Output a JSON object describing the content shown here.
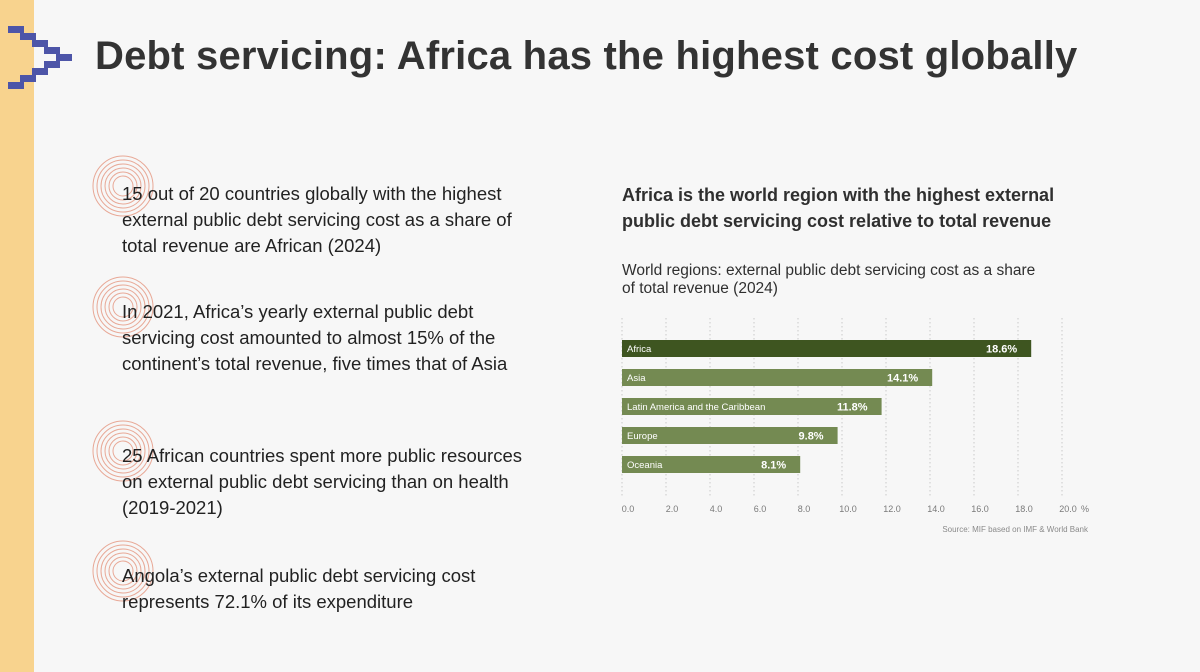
{
  "page": {
    "title": "Debt servicing: Africa has the highest cost globally"
  },
  "colors": {
    "band": "#f8d38e",
    "logo": "#4d55a8",
    "rings": "#e8a896",
    "bar_highlight": "#3e5520",
    "bar_default": "#748a52"
  },
  "stats": [
    {
      "text": "15 out of 20 countries globally with the highest external public debt servicing cost as a share of total revenue are African (2024)"
    },
    {
      "text": "In 2021, Africa’s yearly external public debt servicing cost amounted to almost 15% of the continent’s total revenue, five times that of Asia"
    },
    {
      "text": "25 African countries spent more public resources on external public debt servicing than on health (2019-2021)"
    },
    {
      "text": "Angola’s external public debt servicing cost represents 72.1% of its expenditure"
    }
  ],
  "chart_heading": "Africa is the world region with the highest external public debt servicing cost relative to total revenue",
  "chart_data": {
    "type": "bar",
    "orientation": "horizontal",
    "title": "World regions: external public debt servicing cost as a share of total revenue (2024)",
    "categories": [
      "Africa",
      "Asia",
      "Latin America and the Caribbean",
      "Europe",
      "Oceania"
    ],
    "values": [
      18.6,
      14.1,
      11.8,
      9.8,
      8.1
    ],
    "value_labels": [
      "18.6%",
      "14.1%",
      "11.8%",
      "9.8%",
      "8.1%"
    ],
    "xlim": [
      0,
      20
    ],
    "xticks": [
      "0.0",
      "2.0",
      "4.0",
      "6.0",
      "8.0",
      "10.0",
      "12.0",
      "14.0",
      "16.0",
      "18.0",
      "20.0"
    ],
    "xunit": "%",
    "grid": true,
    "highlight": "Africa",
    "source": "Source: MIF based on IMF & World Bank"
  }
}
